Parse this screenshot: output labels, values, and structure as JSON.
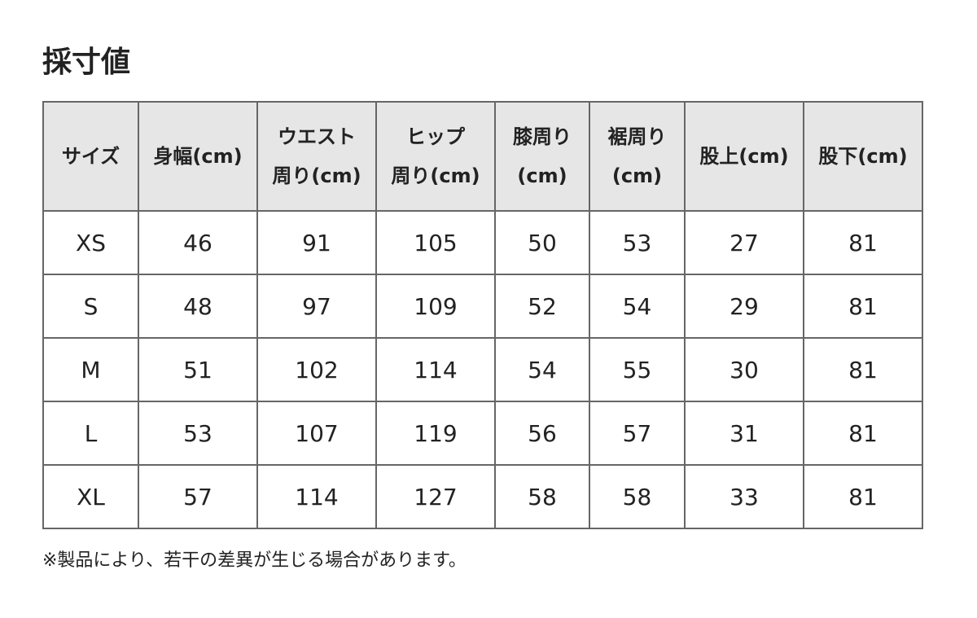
{
  "title": "採寸値",
  "table": {
    "headers": [
      [
        "サイズ"
      ],
      [
        "身幅(cm)"
      ],
      [
        "ウエスト",
        "周り(cm)"
      ],
      [
        "ヒップ",
        "周り(cm)"
      ],
      [
        "膝周り",
        "(cm)"
      ],
      [
        "裾周り",
        "(cm)"
      ],
      [
        "股上(cm)"
      ],
      [
        "股下(cm)"
      ]
    ],
    "rows": [
      [
        "XS",
        "46",
        "91",
        "105",
        "50",
        "53",
        "27",
        "81"
      ],
      [
        "S",
        "48",
        "97",
        "109",
        "52",
        "54",
        "29",
        "81"
      ],
      [
        "M",
        "51",
        "102",
        "114",
        "54",
        "55",
        "30",
        "81"
      ],
      [
        "L",
        "53",
        "107",
        "119",
        "56",
        "57",
        "31",
        "81"
      ],
      [
        "XL",
        "57",
        "114",
        "127",
        "58",
        "58",
        "33",
        "81"
      ]
    ]
  },
  "note": "※製品により、若干の差異が生じる場合があります。",
  "colors": {
    "header_bg": "#e6e6e6",
    "border": "#666666"
  }
}
